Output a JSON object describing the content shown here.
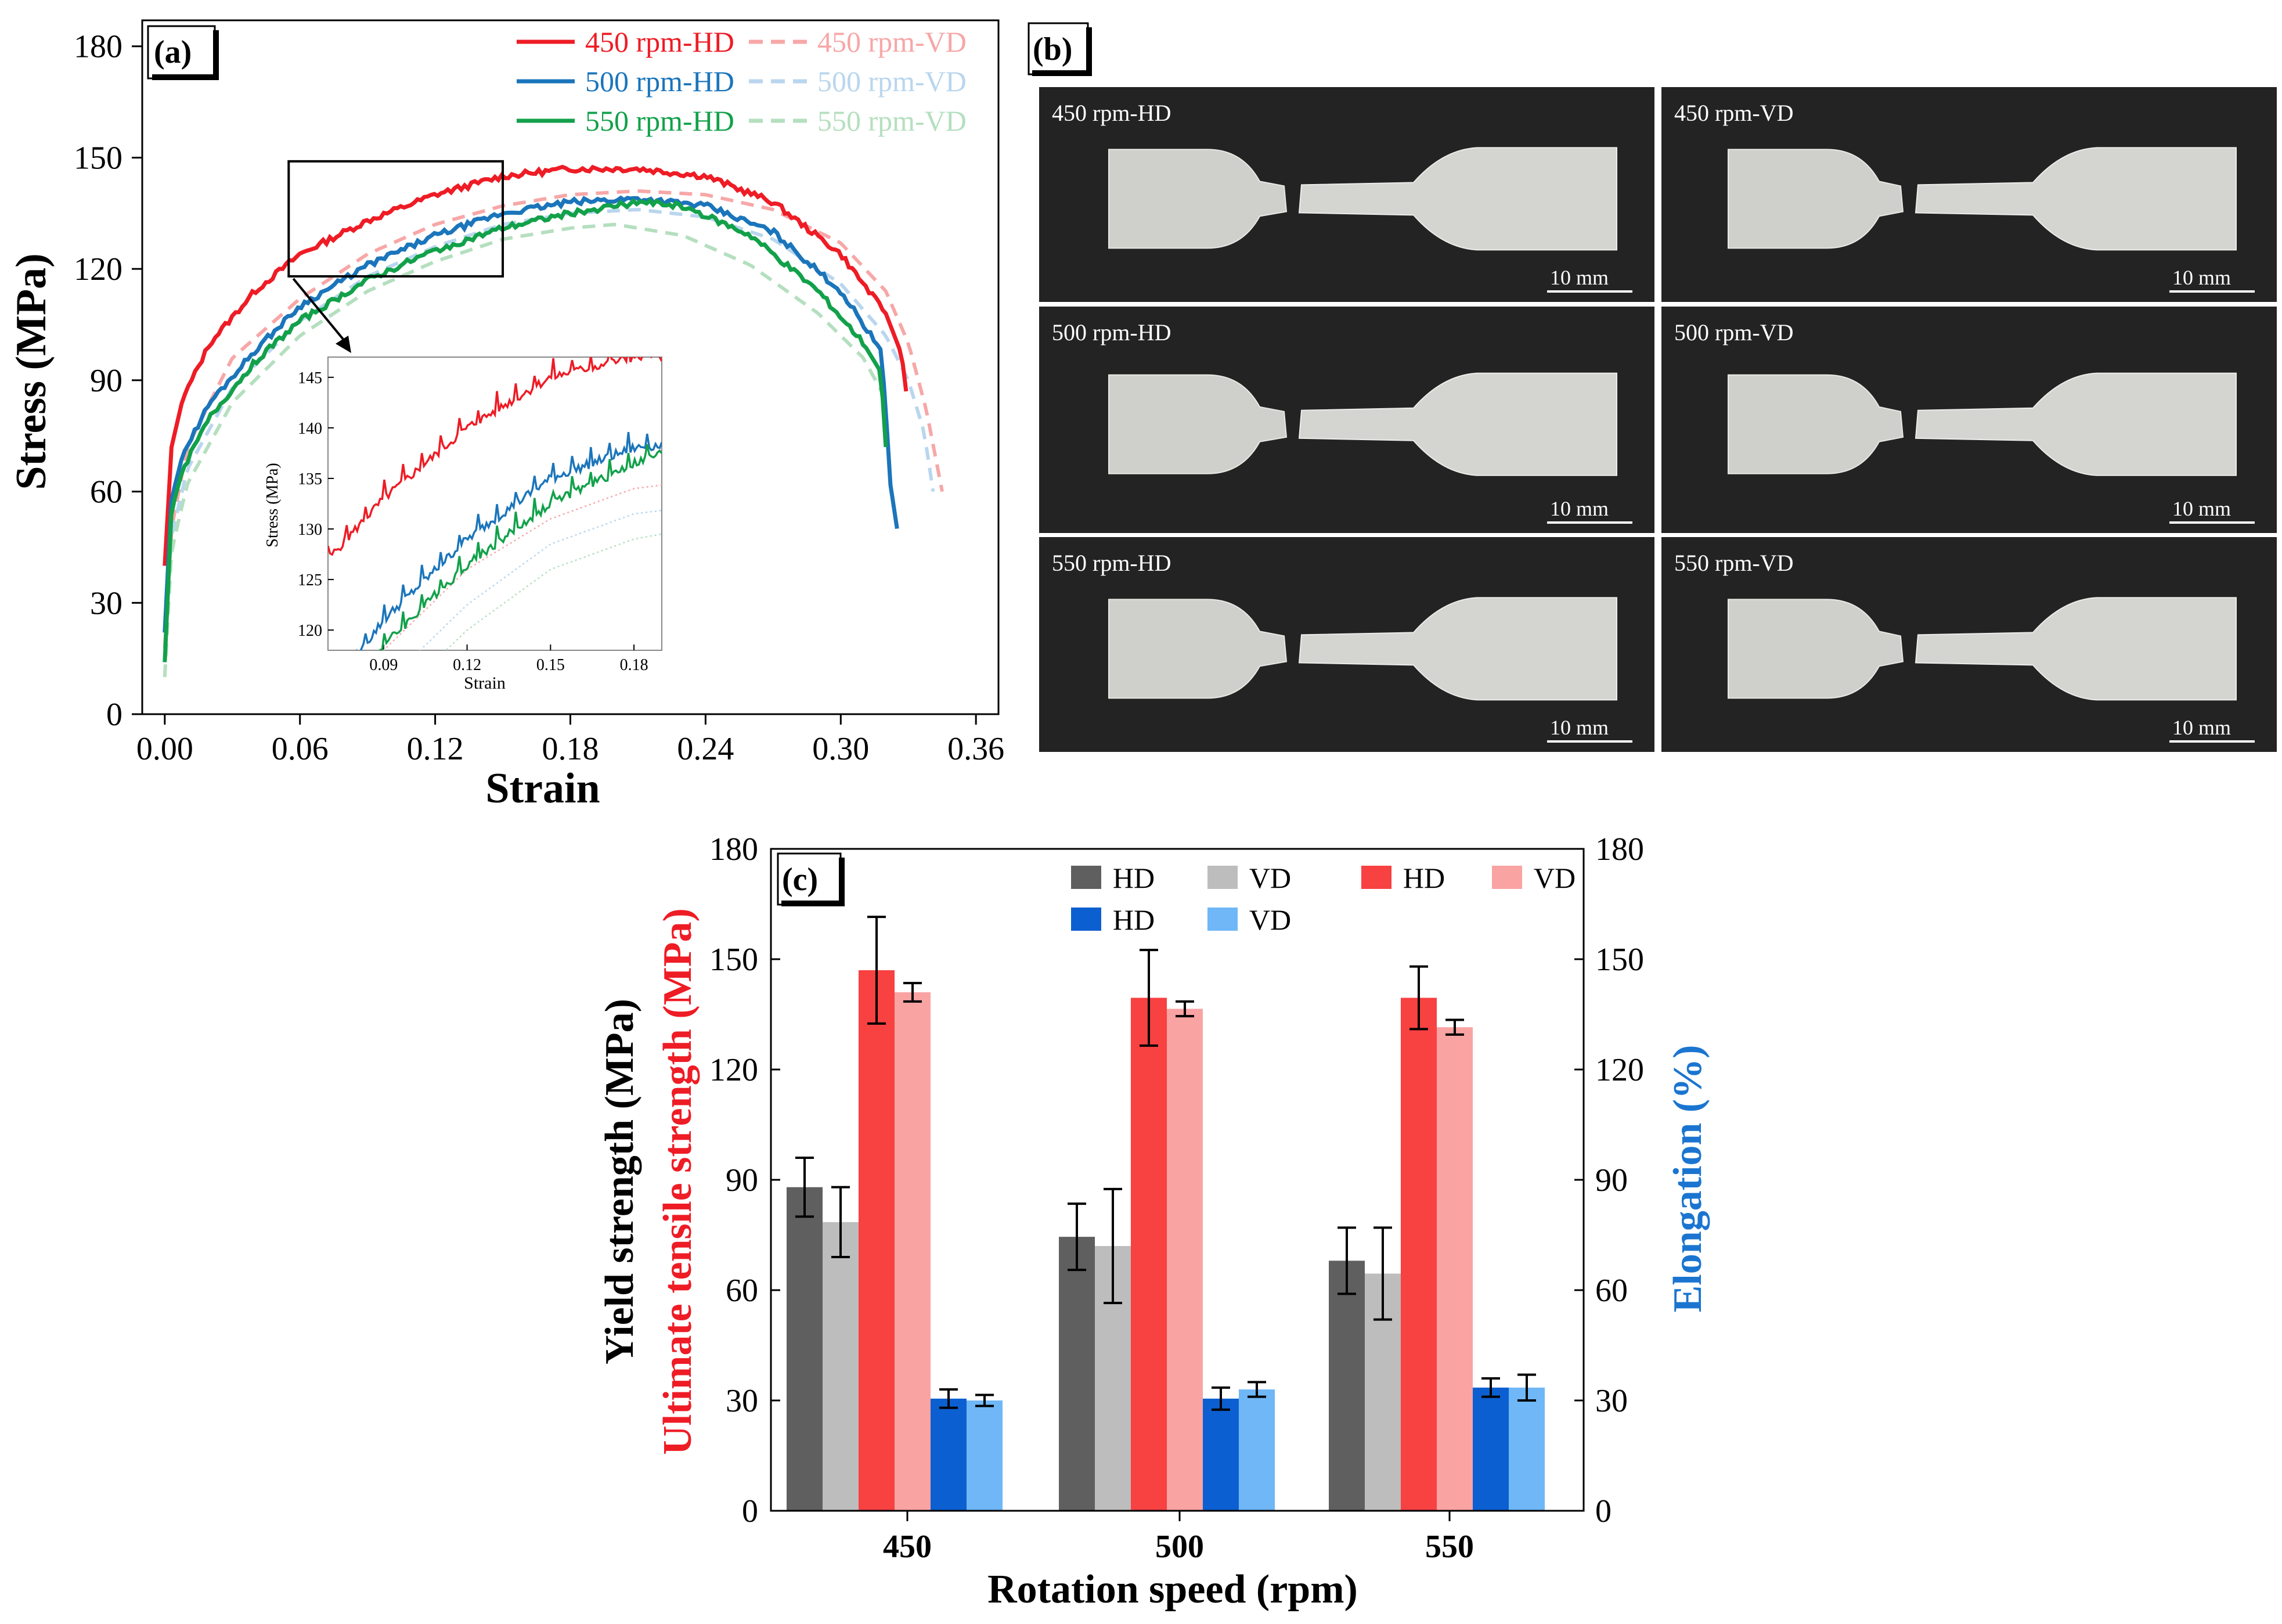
{
  "chart_data": [
    {
      "type": "line",
      "panel_label": "(a)",
      "xlabel": "Strain",
      "ylabel": "Stress (MPa)",
      "xlim": [
        -0.01,
        0.37
      ],
      "ylim": [
        0,
        187
      ],
      "xticks": [
        0.0,
        0.06,
        0.12,
        0.18,
        0.24,
        0.3,
        0.36
      ],
      "xtick_labels": [
        "0.00",
        "0.06",
        "0.12",
        "0.18",
        "0.24",
        "0.30",
        "0.36"
      ],
      "yticks": [
        0,
        30,
        60,
        90,
        120,
        150,
        180
      ],
      "ytick_labels": [
        "0",
        "30",
        "60",
        "90",
        "120",
        "150",
        "180"
      ],
      "legend_position": "top-right",
      "series": [
        {
          "name": "450 rpm-HD",
          "color": "#ee1c25",
          "dash": "solid",
          "x": [
            0.0,
            0.003,
            0.008,
            0.02,
            0.04,
            0.06,
            0.09,
            0.12,
            0.15,
            0.18,
            0.21,
            0.24,
            0.27,
            0.3,
            0.32,
            0.327,
            0.329
          ],
          "y": [
            40,
            72,
            85,
            100,
            114,
            124,
            133,
            140,
            145,
            147,
            147,
            145,
            138,
            124,
            108,
            97,
            87
          ]
        },
        {
          "name": "450 rpm-VD",
          "color": "#f7a7a7",
          "dash": "dashed",
          "x": [
            0.0,
            0.003,
            0.01,
            0.03,
            0.06,
            0.09,
            0.12,
            0.15,
            0.18,
            0.21,
            0.24,
            0.27,
            0.3,
            0.32,
            0.33,
            0.338,
            0.345
          ],
          "y": [
            18,
            50,
            72,
            96,
            112,
            124,
            132,
            137,
            140,
            141,
            140,
            136,
            127,
            114,
            100,
            82,
            60
          ]
        },
        {
          "name": "500 rpm-HD",
          "color": "#1b75bb",
          "dash": "solid",
          "x": [
            0.0,
            0.003,
            0.008,
            0.02,
            0.04,
            0.06,
            0.09,
            0.12,
            0.15,
            0.18,
            0.21,
            0.24,
            0.27,
            0.3,
            0.318,
            0.32,
            0.322,
            0.325
          ],
          "y": [
            22,
            58,
            70,
            84,
            98,
            110,
            121,
            129,
            135,
            138,
            139,
            137,
            130,
            114,
            98,
            82,
            62,
            50
          ]
        },
        {
          "name": "500 rpm-VD",
          "color": "#b9d6ee",
          "dash": "dashed",
          "x": [
            0.0,
            0.003,
            0.01,
            0.03,
            0.06,
            0.09,
            0.12,
            0.15,
            0.18,
            0.21,
            0.24,
            0.27,
            0.3,
            0.32,
            0.33,
            0.337,
            0.341
          ],
          "y": [
            15,
            48,
            66,
            88,
            106,
            118,
            126,
            132,
            135,
            136,
            134,
            128,
            116,
            102,
            90,
            76,
            60
          ]
        },
        {
          "name": "550 rpm-HD",
          "color": "#12a14a",
          "dash": "solid",
          "x": [
            0.0,
            0.003,
            0.008,
            0.02,
            0.04,
            0.06,
            0.09,
            0.12,
            0.15,
            0.18,
            0.21,
            0.23,
            0.26,
            0.29,
            0.31,
            0.318,
            0.319,
            0.32
          ],
          "y": [
            14,
            55,
            66,
            80,
            95,
            106,
            117,
            125,
            131,
            135,
            138,
            137,
            129,
            114,
            100,
            92,
            80,
            72
          ]
        },
        {
          "name": "550 rpm-VD",
          "color": "#b5dfbf",
          "dash": "dashed",
          "x": [
            0.0,
            0.003,
            0.01,
            0.03,
            0.06,
            0.09,
            0.12,
            0.15,
            0.18,
            0.2,
            0.23,
            0.26,
            0.29,
            0.31,
            0.32
          ],
          "y": [
            10,
            44,
            62,
            84,
            102,
            114,
            122,
            128,
            131,
            132,
            129,
            121,
            108,
            96,
            85
          ]
        }
      ],
      "inset": {
        "xlabel": "Strain",
        "ylabel": "Stress (MPa)",
        "xlim": [
          0.07,
          0.19
        ],
        "ylim": [
          118,
          147
        ],
        "xticks": [
          0.09,
          0.12,
          0.15,
          0.18
        ],
        "xtick_labels": [
          "0.09",
          "0.12",
          "0.15",
          "0.18"
        ],
        "yticks": [
          120,
          125,
          130,
          135,
          140,
          145
        ],
        "ytick_labels": [
          "120",
          "125",
          "130",
          "135",
          "140",
          "145"
        ],
        "zoom_box": {
          "x": [
            0.055,
            0.15
          ],
          "y": [
            118,
            149
          ]
        }
      }
    },
    {
      "type": "image-grid",
      "panel_label": "(b)",
      "tiles": [
        {
          "label": "450 rpm-HD",
          "scale": "10 mm"
        },
        {
          "label": "450 rpm-VD",
          "scale": "10 mm"
        },
        {
          "label": "500 rpm-HD",
          "scale": "10 mm"
        },
        {
          "label": "500 rpm-VD",
          "scale": "10 mm"
        },
        {
          "label": "550 rpm-HD",
          "scale": "10 mm"
        },
        {
          "label": "550 rpm-VD",
          "scale": "10 mm"
        }
      ]
    },
    {
      "type": "bar",
      "panel_label": "(c)",
      "xlabel": "Rotation speed (rpm)",
      "ylabel_line1": "Yield strength (MPa)",
      "ylabel_line2": "Ultimate tensile strength (MPa)",
      "ylabel_right": "Elongation (%)",
      "categories": [
        "450",
        "500",
        "550"
      ],
      "ylim": [
        0,
        180
      ],
      "yticks": [
        0,
        30,
        60,
        90,
        120,
        150,
        180
      ],
      "ytick_labels": [
        "0",
        "30",
        "60",
        "90",
        "120",
        "150",
        "180"
      ],
      "yticks_right": [
        0,
        30,
        60,
        90,
        120,
        150,
        180
      ],
      "ytick_labels_right": [
        "0",
        "30",
        "60",
        "90",
        "120",
        "150",
        "180"
      ],
      "legend_position": "top-right",
      "series": [
        {
          "name": "HD",
          "group": "Yield strength",
          "color": "#5f5f5f",
          "values": [
            88,
            74.5,
            68
          ],
          "errors": [
            8,
            9,
            9
          ]
        },
        {
          "name": "VD",
          "group": "Yield strength",
          "color": "#bdbdbd",
          "values": [
            78.5,
            72,
            64.5
          ],
          "errors": [
            9.5,
            15.5,
            12.5
          ]
        },
        {
          "name": "HD",
          "group": "Ultimate tensile strength",
          "color": "#f84141",
          "values": [
            147,
            139.5,
            139.5
          ],
          "errors": [
            14.5,
            13,
            8.5
          ]
        },
        {
          "name": "VD",
          "group": "Ultimate tensile strength",
          "color": "#faa3a3",
          "values": [
            141,
            136.5,
            131.5
          ],
          "errors": [
            2.5,
            2,
            2
          ]
        },
        {
          "name": "HD",
          "group": "Elongation",
          "color": "#0c5fd0",
          "values": [
            30.5,
            30.5,
            33.5
          ],
          "errors": [
            2.5,
            3,
            2.5
          ]
        },
        {
          "name": "VD",
          "group": "Elongation",
          "color": "#6fb7f7",
          "values": [
            30,
            33,
            33.5
          ],
          "errors": [
            1.5,
            2,
            3.5
          ]
        }
      ]
    }
  ]
}
